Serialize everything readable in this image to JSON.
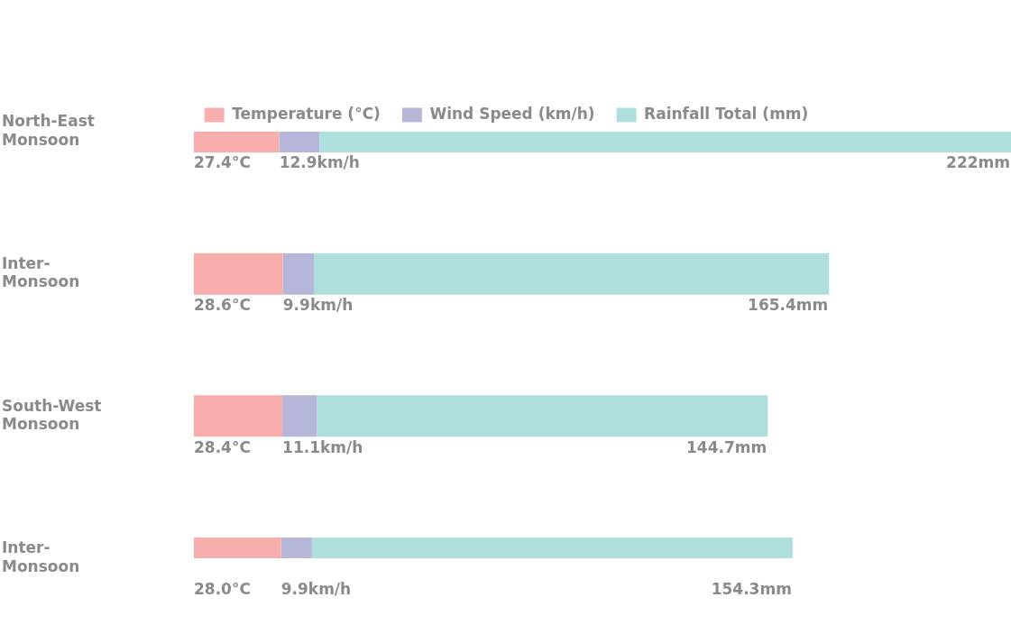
{
  "chart_data": {
    "type": "bar",
    "orientation": "horizontal",
    "stacked": true,
    "legend": "top",
    "categories": [
      "North-East Monsoon",
      "Inter-Monsoon",
      "South-West Monsoon",
      "Inter-Monsoon"
    ],
    "series": [
      {
        "name": "Temperature (°C)",
        "color": "#f9aeae",
        "values": [
          27.4,
          28.6,
          28.4,
          28.0
        ],
        "value_labels": [
          "27.4°C",
          "28.6°C",
          "28.4°C",
          "28.0°C"
        ]
      },
      {
        "name": "Wind Speed (km/h)",
        "color": "#b6b6d8",
        "values": [
          12.9,
          9.9,
          11.1,
          9.9
        ],
        "value_labels": [
          "12.9km/h",
          "9.9km/h",
          "11.1km/h",
          "9.9km/h"
        ]
      },
      {
        "name": "Rainfall Total (mm)",
        "color": "#aedfdc",
        "values": [
          222,
          165.4,
          144.7,
          154.3
        ],
        "value_labels": [
          "222mm",
          "165.4mm",
          "144.7mm",
          "154.3mm"
        ]
      }
    ]
  }
}
